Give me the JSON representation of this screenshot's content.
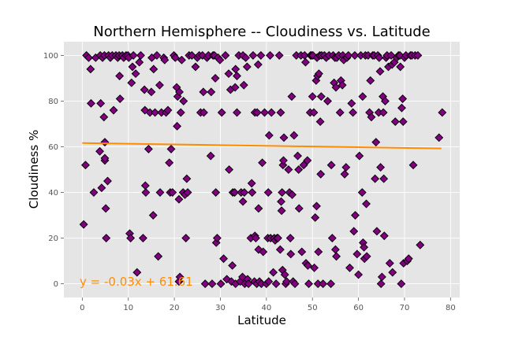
{
  "chart_data": {
    "type": "scatter",
    "title": "Northern Hemisphere -- Cloudiness vs. Latitude",
    "xlabel": "Latitude",
    "ylabel": "Cloudiness %",
    "xlim": [
      -4,
      82
    ],
    "ylim": [
      -6,
      106
    ],
    "xticks": [
      0,
      10,
      20,
      30,
      40,
      50,
      60,
      70,
      80
    ],
    "yticks": [
      0,
      20,
      40,
      60,
      80,
      100
    ],
    "grid": true,
    "colors": {
      "background": "#e5e5e5",
      "grid": "#ffffff",
      "marker_fill": "#800080",
      "marker_edge": "#000000",
      "regression_line": "#ff8c00",
      "equation_text": "#ff8c00"
    },
    "marker": "diamond",
    "regression": {
      "slope": -0.03,
      "intercept": 61.61,
      "x_range": [
        0,
        78
      ],
      "equation_label": "y = -0.03x + 61.61"
    },
    "points": [
      [
        0.3,
        26
      ],
      [
        0.7,
        52
      ],
      [
        0.9,
        100
      ],
      [
        1.4,
        99
      ],
      [
        1.8,
        94
      ],
      [
        1.9,
        79
      ],
      [
        2.5,
        40
      ],
      [
        2.9,
        99
      ],
      [
        3.8,
        58
      ],
      [
        3.9,
        100
      ],
      [
        4.0,
        79
      ],
      [
        4.2,
        42
      ],
      [
        4.4,
        99
      ],
      [
        4.7,
        73
      ],
      [
        4.8,
        100
      ],
      [
        4.9,
        54
      ],
      [
        4.9,
        62
      ],
      [
        4.9,
        55
      ],
      [
        5.1,
        33
      ],
      [
        5.2,
        20
      ],
      [
        5.5,
        45
      ],
      [
        5.7,
        100
      ],
      [
        6.1,
        99
      ],
      [
        6.5,
        100
      ],
      [
        6.8,
        76
      ],
      [
        7.3,
        100
      ],
      [
        7.7,
        99
      ],
      [
        8.0,
        100
      ],
      [
        8.1,
        91
      ],
      [
        8.2,
        81
      ],
      [
        8.7,
        100
      ],
      [
        9.0,
        99
      ],
      [
        9.5,
        100
      ],
      [
        9.9,
        100
      ],
      [
        10.1,
        99
      ],
      [
        10.3,
        22
      ],
      [
        10.5,
        20
      ],
      [
        10.7,
        88
      ],
      [
        10.9,
        95
      ],
      [
        11.1,
        100
      ],
      [
        11.6,
        92
      ],
      [
        11.9,
        5
      ],
      [
        12.4,
        97
      ],
      [
        12.7,
        100
      ],
      [
        13.2,
        20
      ],
      [
        13.5,
        85
      ],
      [
        13.6,
        76
      ],
      [
        13.7,
        43
      ],
      [
        13.8,
        40
      ],
      [
        14.4,
        59
      ],
      [
        14.7,
        75
      ],
      [
        15.0,
        84
      ],
      [
        15.1,
        99
      ],
      [
        15.4,
        30
      ],
      [
        15.5,
        94
      ],
      [
        15.8,
        75
      ],
      [
        16.2,
        100
      ],
      [
        16.5,
        12
      ],
      [
        16.8,
        87
      ],
      [
        16.9,
        40
      ],
      [
        17.2,
        75
      ],
      [
        17.7,
        99
      ],
      [
        17.9,
        98
      ],
      [
        18.2,
        75
      ],
      [
        18.6,
        76
      ],
      [
        18.9,
        53
      ],
      [
        19.1,
        40
      ],
      [
        19.3,
        59
      ],
      [
        19.6,
        40
      ],
      [
        19.9,
        100
      ],
      [
        20.2,
        99
      ],
      [
        20.5,
        86
      ],
      [
        20.6,
        69
      ],
      [
        20.7,
        82
      ],
      [
        21.0,
        1
      ],
      [
        21.0,
        37
      ],
      [
        21.1,
        84
      ],
      [
        21.2,
        3
      ],
      [
        21.4,
        75
      ],
      [
        21.6,
        98
      ],
      [
        21.9,
        40
      ],
      [
        22.0,
        80
      ],
      [
        22.3,
        39
      ],
      [
        22.5,
        20
      ],
      [
        22.7,
        46
      ],
      [
        22.9,
        40
      ],
      [
        23.2,
        100
      ],
      [
        23.8,
        100
      ],
      [
        24.6,
        95
      ],
      [
        25.0,
        99
      ],
      [
        25.4,
        100
      ],
      [
        25.7,
        75
      ],
      [
        26.1,
        100
      ],
      [
        26.3,
        84
      ],
      [
        26.4,
        75
      ],
      [
        26.7,
        0
      ],
      [
        27.1,
        99
      ],
      [
        27.4,
        100
      ],
      [
        27.9,
        56
      ],
      [
        28.0,
        84
      ],
      [
        28.2,
        0
      ],
      [
        28.4,
        100
      ],
      [
        28.7,
        100
      ],
      [
        28.9,
        90
      ],
      [
        29.0,
        40
      ],
      [
        29.1,
        18
      ],
      [
        29.3,
        20
      ],
      [
        29.5,
        99
      ],
      [
        29.9,
        98
      ],
      [
        30.1,
        0
      ],
      [
        30.3,
        75
      ],
      [
        30.7,
        11
      ],
      [
        31.1,
        100
      ],
      [
        31.4,
        2
      ],
      [
        31.8,
        92
      ],
      [
        31.9,
        50
      ],
      [
        32.2,
        85
      ],
      [
        32.4,
        1
      ],
      [
        32.6,
        8
      ],
      [
        32.7,
        40
      ],
      [
        33.1,
        40
      ],
      [
        33.2,
        86
      ],
      [
        33.3,
        94
      ],
      [
        33.3,
        0
      ],
      [
        33.6,
        91
      ],
      [
        33.6,
        75
      ],
      [
        34.0,
        100
      ],
      [
        34.3,
        1
      ],
      [
        34.5,
        40
      ],
      [
        34.8,
        3
      ],
      [
        34.9,
        100
      ],
      [
        34.9,
        36
      ],
      [
        35.1,
        87
      ],
      [
        35.2,
        40
      ],
      [
        35.3,
        0
      ],
      [
        35.5,
        99
      ],
      [
        35.8,
        95
      ],
      [
        35.9,
        2
      ],
      [
        36.1,
        0
      ],
      [
        36.6,
        20
      ],
      [
        36.8,
        44
      ],
      [
        36.9,
        40
      ],
      [
        37.1,
        100
      ],
      [
        37.4,
        1
      ],
      [
        37.5,
        75
      ],
      [
        37.5,
        21
      ],
      [
        37.7,
        20
      ],
      [
        37.9,
        0
      ],
      [
        38.0,
        75
      ],
      [
        38.2,
        96
      ],
      [
        38.3,
        15
      ],
      [
        38.3,
        33
      ],
      [
        38.5,
        1
      ],
      [
        38.8,
        100
      ],
      [
        38.9,
        0
      ],
      [
        39.1,
        53
      ],
      [
        39.3,
        14
      ],
      [
        39.6,
        75
      ],
      [
        40.0,
        0
      ],
      [
        40.3,
        20
      ],
      [
        40.4,
        40
      ],
      [
        40.5,
        1
      ],
      [
        40.6,
        65
      ],
      [
        40.8,
        100
      ],
      [
        40.9,
        20
      ],
      [
        41.1,
        75
      ],
      [
        41.5,
        5
      ],
      [
        41.7,
        20
      ],
      [
        41.9,
        19
      ],
      [
        42.1,
        0
      ],
      [
        42.3,
        20
      ],
      [
        42.5,
        20
      ],
      [
        42.8,
        100
      ],
      [
        43.0,
        15
      ],
      [
        43.1,
        75
      ],
      [
        43.2,
        36
      ],
      [
        43.3,
        32
      ],
      [
        43.4,
        40
      ],
      [
        43.5,
        6
      ],
      [
        43.6,
        52
      ],
      [
        43.7,
        54
      ],
      [
        43.8,
        64
      ],
      [
        44.0,
        4
      ],
      [
        44.2,
        0
      ],
      [
        44.4,
        1
      ],
      [
        44.8,
        50
      ],
      [
        45.0,
        40
      ],
      [
        45.2,
        20
      ],
      [
        45.3,
        13
      ],
      [
        45.5,
        82
      ],
      [
        45.6,
        39
      ],
      [
        45.8,
        1
      ],
      [
        46.0,
        65
      ],
      [
        46.2,
        0
      ],
      [
        46.5,
        100
      ],
      [
        46.8,
        56
      ],
      [
        47.0,
        50
      ],
      [
        47.1,
        33
      ],
      [
        47.5,
        100
      ],
      [
        47.7,
        14
      ],
      [
        48.1,
        52
      ],
      [
        48.3,
        100
      ],
      [
        48.5,
        97
      ],
      [
        48.6,
        9
      ],
      [
        48.9,
        54
      ],
      [
        49.0,
        8
      ],
      [
        49.2,
        0
      ],
      [
        49.5,
        75
      ],
      [
        49.6,
        100
      ],
      [
        49.8,
        100
      ],
      [
        50.0,
        82
      ],
      [
        50.1,
        100
      ],
      [
        50.3,
        75
      ],
      [
        50.4,
        7
      ],
      [
        50.6,
        29
      ],
      [
        50.8,
        89
      ],
      [
        50.9,
        34
      ],
      [
        51.0,
        99
      ],
      [
        51.1,
        91
      ],
      [
        51.2,
        0
      ],
      [
        51.3,
        14
      ],
      [
        51.4,
        92
      ],
      [
        51.6,
        100
      ],
      [
        51.7,
        71
      ],
      [
        51.8,
        48
      ],
      [
        51.9,
        82
      ],
      [
        52.0,
        100
      ],
      [
        52.3,
        0
      ],
      [
        52.6,
        100
      ],
      [
        53.0,
        99
      ],
      [
        53.3,
        80
      ],
      [
        53.6,
        100
      ],
      [
        54.0,
        0
      ],
      [
        54.1,
        52
      ],
      [
        54.3,
        20
      ],
      [
        54.5,
        100
      ],
      [
        54.7,
        88
      ],
      [
        54.9,
        99
      ],
      [
        55.0,
        15
      ],
      [
        55.1,
        86
      ],
      [
        55.2,
        12
      ],
      [
        55.3,
        99
      ],
      [
        55.7,
        100
      ],
      [
        56.0,
        75
      ],
      [
        56.2,
        89
      ],
      [
        56.5,
        87
      ],
      [
        56.6,
        100
      ],
      [
        56.8,
        98
      ],
      [
        57.0,
        48
      ],
      [
        57.3,
        51
      ],
      [
        57.5,
        99
      ],
      [
        57.8,
        100
      ],
      [
        58.1,
        7
      ],
      [
        58.5,
        79
      ],
      [
        58.8,
        75
      ],
      [
        59.0,
        23
      ],
      [
        59.2,
        100
      ],
      [
        59.3,
        30
      ],
      [
        59.7,
        13
      ],
      [
        60.0,
        4
      ],
      [
        60.2,
        56
      ],
      [
        60.5,
        100
      ],
      [
        60.8,
        40
      ],
      [
        60.9,
        82
      ],
      [
        61.0,
        18
      ],
      [
        61.2,
        16
      ],
      [
        61.3,
        11
      ],
      [
        61.5,
        100
      ],
      [
        61.7,
        35
      ],
      [
        61.8,
        12
      ],
      [
        62.1,
        100
      ],
      [
        62.4,
        75
      ],
      [
        62.6,
        89
      ],
      [
        62.8,
        73
      ],
      [
        63.1,
        100
      ],
      [
        63.4,
        100
      ],
      [
        63.6,
        46
      ],
      [
        63.8,
        62
      ],
      [
        64.0,
        23
      ],
      [
        64.2,
        100
      ],
      [
        64.4,
        75
      ],
      [
        64.5,
        99
      ],
      [
        64.7,
        93
      ],
      [
        64.8,
        51
      ],
      [
        64.9,
        0
      ],
      [
        65.1,
        3
      ],
      [
        65.3,
        82
      ],
      [
        65.4,
        75
      ],
      [
        65.5,
        46
      ],
      [
        65.6,
        21
      ],
      [
        65.8,
        80
      ],
      [
        66.0,
        99
      ],
      [
        66.2,
        100
      ],
      [
        66.5,
        95
      ],
      [
        66.8,
        9
      ],
      [
        67.1,
        100
      ],
      [
        67.3,
        96
      ],
      [
        67.4,
        5
      ],
      [
        67.8,
        97
      ],
      [
        68.0,
        71
      ],
      [
        68.3,
        99
      ],
      [
        68.7,
        100
      ],
      [
        69.0,
        100
      ],
      [
        69.1,
        95
      ],
      [
        69.3,
        0
      ],
      [
        69.4,
        77
      ],
      [
        69.6,
        81
      ],
      [
        69.7,
        71
      ],
      [
        69.8,
        9
      ],
      [
        70.0,
        99
      ],
      [
        70.3,
        100
      ],
      [
        70.6,
        10
      ],
      [
        70.9,
        11
      ],
      [
        71.3,
        100
      ],
      [
        71.6,
        100
      ],
      [
        71.9,
        52
      ],
      [
        72.3,
        100
      ],
      [
        72.9,
        100
      ],
      [
        73.4,
        17
      ],
      [
        77.5,
        64
      ],
      [
        78.2,
        75
      ]
    ]
  }
}
